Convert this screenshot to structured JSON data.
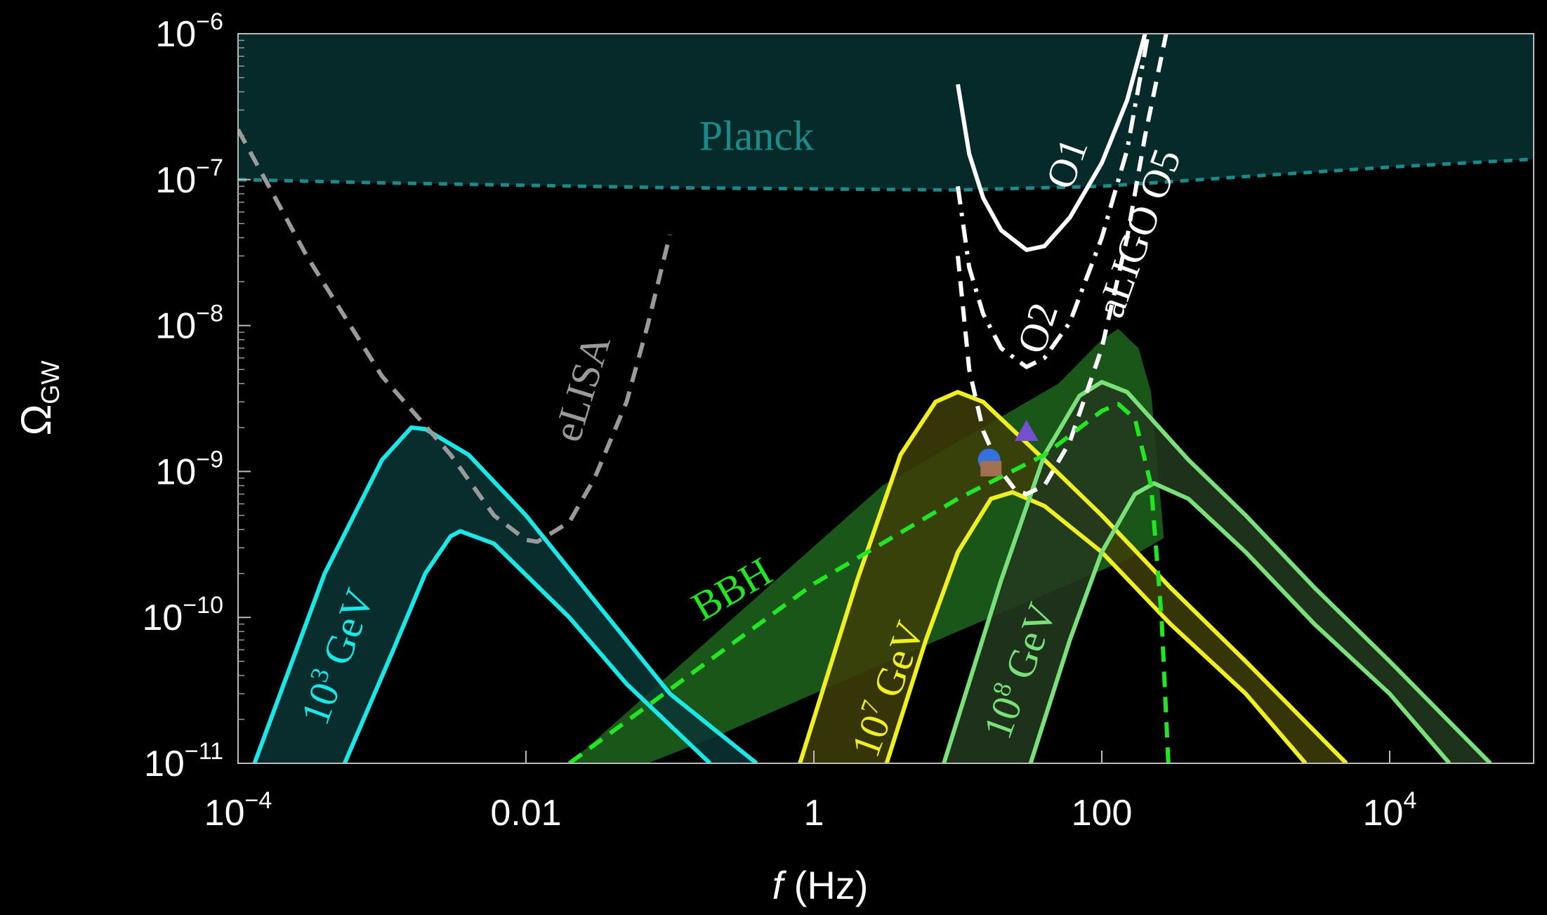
{
  "chart_data": {
    "type": "line",
    "xlabel": {
      "italic": "f",
      "rest": " (Hz)"
    },
    "ylabel": {
      "main": "Ω",
      "sub": "GW"
    },
    "xscale": "log",
    "yscale": "log",
    "xlim": [
      0.0001,
      100000
    ],
    "ylim": [
      1e-11,
      1e-06
    ],
    "grid": false,
    "xticks": [
      {
        "v": 0.0001,
        "base": "10",
        "exp": "−4"
      },
      {
        "v": 0.01,
        "base": "0.01",
        "exp": ""
      },
      {
        "v": 1,
        "base": "1",
        "exp": ""
      },
      {
        "v": 100,
        "base": "100",
        "exp": ""
      },
      {
        "v": 10000,
        "base": "10",
        "exp": "4"
      }
    ],
    "yticks": [
      {
        "v": 1e-11,
        "base": "10",
        "exp": "−11"
      },
      {
        "v": 1e-10,
        "base": "10",
        "exp": "−10"
      },
      {
        "v": 1e-09,
        "base": "10",
        "exp": "−9"
      },
      {
        "v": 1e-08,
        "base": "10",
        "exp": "−8"
      },
      {
        "v": 1e-07,
        "base": "10",
        "exp": "−7"
      },
      {
        "v": 1e-06,
        "base": "10",
        "exp": "−6"
      }
    ],
    "colors": {
      "background": "#000000",
      "planck_fill": "#062a2a",
      "planck_line": "#1a8a8a",
      "elisa": "#9a9a9a",
      "ligo": "#ffffff",
      "cyan": "#19e8e8",
      "cyan_fill": "#0b3535",
      "yellow": "#f0f020",
      "yellow_fill": "#3e3e08",
      "lightgreen": "#7ae07a",
      "lightgreen_fill": "#233a1f",
      "bbh_fill": "#1d5e1d",
      "bbh_line": "#22e622",
      "marker_circle": "#3370e0",
      "marker_triangle": "#7450d0",
      "marker_square": "#a07050"
    },
    "regions": [
      {
        "name": "Planck",
        "lower_boundary": [
          [
            0.0001,
            1e-07
          ],
          [
            0.001,
            9.5e-08
          ],
          [
            0.1,
            8.8e-08
          ],
          [
            10,
            8.5e-08
          ],
          [
            100,
            9e-08
          ],
          [
            1000,
            1.05e-07
          ],
          [
            10000,
            1.22e-07
          ],
          [
            100000,
            1.38e-07
          ]
        ]
      },
      {
        "name": "BBH",
        "outer": [
          [
            0.02,
            1e-11
          ],
          [
            3,
            8e-10
          ],
          [
            50,
            4e-09
          ],
          [
            100,
            8e-09
          ],
          [
            130,
            9.5e-09
          ],
          [
            180,
            7e-09
          ],
          [
            220,
            3.5e-09
          ],
          [
            270,
            3.5e-10
          ],
          [
            150,
            2.5e-10
          ],
          [
            10,
            8e-11
          ],
          [
            1,
            3e-11
          ],
          [
            0.2,
            1.5e-11
          ],
          [
            0.07,
            1e-11
          ]
        ]
      }
    ],
    "curves": [
      {
        "name": "eLISA",
        "style": "dashed",
        "color_key": "elisa",
        "points": [
          [
            0.0001,
            2.2e-07
          ],
          [
            0.0003,
            3e-08
          ],
          [
            0.001,
            4.5e-09
          ],
          [
            0.003,
            1.3e-09
          ],
          [
            0.006,
            5e-10
          ],
          [
            0.01,
            3.4e-10
          ],
          [
            0.012,
            3.3e-10
          ],
          [
            0.02,
            4.5e-10
          ],
          [
            0.03,
            9e-10
          ],
          [
            0.05,
            3e-09
          ],
          [
            0.07,
            1e-08
          ],
          [
            0.1,
            4.2e-08
          ]
        ]
      },
      {
        "name": "O1",
        "style": "solid",
        "color_key": "ligo",
        "points": [
          [
            10,
            4.5e-07
          ],
          [
            12,
            1.5e-07
          ],
          [
            15,
            7.5e-08
          ],
          [
            20,
            4.5e-08
          ],
          [
            30,
            3.3e-08
          ],
          [
            40,
            3.5e-08
          ],
          [
            60,
            5.5e-08
          ],
          [
            100,
            1.3e-07
          ],
          [
            150,
            3.5e-07
          ],
          [
            200,
            1e-06
          ]
        ]
      },
      {
        "name": "O2",
        "style": "dash-dot",
        "color_key": "ligo",
        "points": [
          [
            10,
            9e-08
          ],
          [
            12,
            2.5e-08
          ],
          [
            15,
            1.2e-08
          ],
          [
            20,
            7e-09
          ],
          [
            30,
            5.2e-09
          ],
          [
            40,
            6e-09
          ],
          [
            60,
            1.05e-08
          ],
          [
            100,
            4e-08
          ],
          [
            150,
            1.6e-07
          ],
          [
            210,
            1e-06
          ]
        ]
      },
      {
        "name": "aLIGO O5",
        "style": "dashed",
        "color_key": "ligo",
        "points": [
          [
            10,
            3e-08
          ],
          [
            12,
            5e-09
          ],
          [
            15,
            1.9e-09
          ],
          [
            20,
            1e-09
          ],
          [
            25,
            7.5e-10
          ],
          [
            30,
            7e-10
          ],
          [
            40,
            8e-10
          ],
          [
            60,
            1.6e-09
          ],
          [
            100,
            7e-09
          ],
          [
            150,
            4e-08
          ],
          [
            200,
            2e-07
          ],
          [
            280,
            1e-06
          ]
        ]
      },
      {
        "name": "BBH",
        "style": "dashed",
        "color_key": "bbh_line",
        "points": [
          [
            0.02,
            1e-11
          ],
          [
            1,
            1.7e-10
          ],
          [
            10,
            6.5e-10
          ],
          [
            40,
            1.3e-09
          ],
          [
            100,
            2.6e-09
          ],
          [
            130,
            2.9e-09
          ],
          [
            170,
            2.3e-09
          ],
          [
            220,
            8e-10
          ],
          [
            260,
            1e-10
          ],
          [
            290,
            1e-11
          ]
        ]
      }
    ],
    "bands": [
      {
        "name": "10³ GeV",
        "color_key": "cyan",
        "fill_key": "cyan_fill",
        "upper": [
          [
            0.00013,
            1e-11
          ],
          [
            0.0004,
            2e-10
          ],
          [
            0.001,
            1.2e-09
          ],
          [
            0.0016,
            2e-09
          ],
          [
            0.002,
            1.95e-09
          ],
          [
            0.004,
            1.3e-09
          ],
          [
            0.01,
            5e-10
          ],
          [
            0.03,
            1.3e-10
          ],
          [
            0.1,
            3e-11
          ],
          [
            0.4,
            1e-11
          ]
        ],
        "lower": [
          [
            0.00055,
            1e-11
          ],
          [
            0.0012,
            6e-11
          ],
          [
            0.002,
            2e-10
          ],
          [
            0.003,
            3.6e-10
          ],
          [
            0.0035,
            3.9e-10
          ],
          [
            0.006,
            3.2e-10
          ],
          [
            0.02,
            1e-10
          ],
          [
            0.05,
            3.5e-11
          ],
          [
            0.19,
            1e-11
          ]
        ]
      },
      {
        "name": "10⁷ GeV",
        "color_key": "yellow",
        "fill_key": "yellow_fill",
        "upper": [
          [
            0.8,
            1e-11
          ],
          [
            2,
            1.8e-10
          ],
          [
            4,
            1.3e-09
          ],
          [
            7,
            3e-09
          ],
          [
            10,
            3.5e-09
          ],
          [
            15,
            3e-09
          ],
          [
            40,
            1.2e-09
          ],
          [
            100,
            5e-10
          ],
          [
            300,
            1.6e-10
          ],
          [
            1000,
            5e-11
          ],
          [
            5000,
            1e-11
          ]
        ],
        "lower": [
          [
            3.2,
            1e-11
          ],
          [
            6,
            7e-11
          ],
          [
            10,
            2.8e-10
          ],
          [
            17,
            6.5e-10
          ],
          [
            24,
            7.2e-10
          ],
          [
            40,
            5.8e-10
          ],
          [
            100,
            2.8e-10
          ],
          [
            300,
            9e-11
          ],
          [
            1000,
            3e-11
          ],
          [
            2600,
            1e-11
          ]
        ]
      },
      {
        "name": "10⁸ GeV",
        "color_key": "lightgreen",
        "fill_key": "lightgreen_fill",
        "upper": [
          [
            8,
            1e-11
          ],
          [
            20,
            1.8e-10
          ],
          [
            40,
            1.3e-09
          ],
          [
            70,
            3.3e-09
          ],
          [
            100,
            4.1e-09
          ],
          [
            150,
            3.5e-09
          ],
          [
            400,
            1.2e-09
          ],
          [
            1000,
            5e-10
          ],
          [
            3000,
            1.6e-10
          ],
          [
            10000,
            5e-11
          ],
          [
            50000,
            1e-11
          ]
        ],
        "lower": [
          [
            32,
            1e-11
          ],
          [
            60,
            7e-11
          ],
          [
            100,
            2.8e-10
          ],
          [
            170,
            7e-10
          ],
          [
            230,
            8.3e-10
          ],
          [
            400,
            6.5e-10
          ],
          [
            1000,
            2.8e-10
          ],
          [
            3000,
            9e-11
          ],
          [
            10000,
            3e-11
          ],
          [
            26000,
            1e-11
          ]
        ]
      }
    ],
    "markers": [
      {
        "shape": "circle",
        "x": 16.5,
        "y": 1.2e-09,
        "color_key": "marker_circle"
      },
      {
        "shape": "triangle",
        "x": 30,
        "y": 1.85e-09,
        "color_key": "marker_triangle"
      },
      {
        "shape": "square",
        "x": 17,
        "y": 1e-09,
        "color_key": "marker_square"
      }
    ],
    "annotations": [
      {
        "key": "planck",
        "text": "Planck",
        "x": 0.4,
        "y": 1.6e-07,
        "rotate": 0,
        "color_key": "planck_line",
        "size": 60
      },
      {
        "key": "elisa",
        "text": "eLISA",
        "x": 0.03,
        "y": 3.5e-09,
        "rotate": -73,
        "color_key": "elisa",
        "size": 58
      },
      {
        "key": "o1",
        "text": "O1",
        "x": 70,
        "y": 1.2e-07,
        "rotate": -70,
        "color_key": "ligo",
        "size": 58
      },
      {
        "key": "o2",
        "text": "O2",
        "x": 44,
        "y": 9e-09,
        "rotate": -72,
        "color_key": "ligo",
        "size": 58
      },
      {
        "key": "aligo",
        "text": "aLIGO O5",
        "x": 220,
        "y": 4e-08,
        "rotate": -70,
        "color_key": "ligo",
        "size": 58
      },
      {
        "key": "bbh",
        "text": "BBH",
        "x": 0.3,
        "y": 1.3e-10,
        "rotate": -30,
        "color_key": "bbh_line",
        "size": 58
      },
      {
        "key": "gev3",
        "base": "10",
        "exp": "3",
        "rest": " GeV",
        "x": 0.0006,
        "y": 5e-11,
        "rotate": -70,
        "color_key": "cyan",
        "size": 58
      },
      {
        "key": "gev7",
        "base": "10",
        "exp": "7",
        "rest": " GeV",
        "x": 4,
        "y": 3e-11,
        "rotate": -70,
        "color_key": "yellow",
        "size": 58
      },
      {
        "key": "gev8",
        "base": "10",
        "exp": "8",
        "rest": " GeV",
        "x": 33,
        "y": 4e-11,
        "rotate": -70,
        "color_key": "lightgreen",
        "size": 58
      }
    ]
  }
}
